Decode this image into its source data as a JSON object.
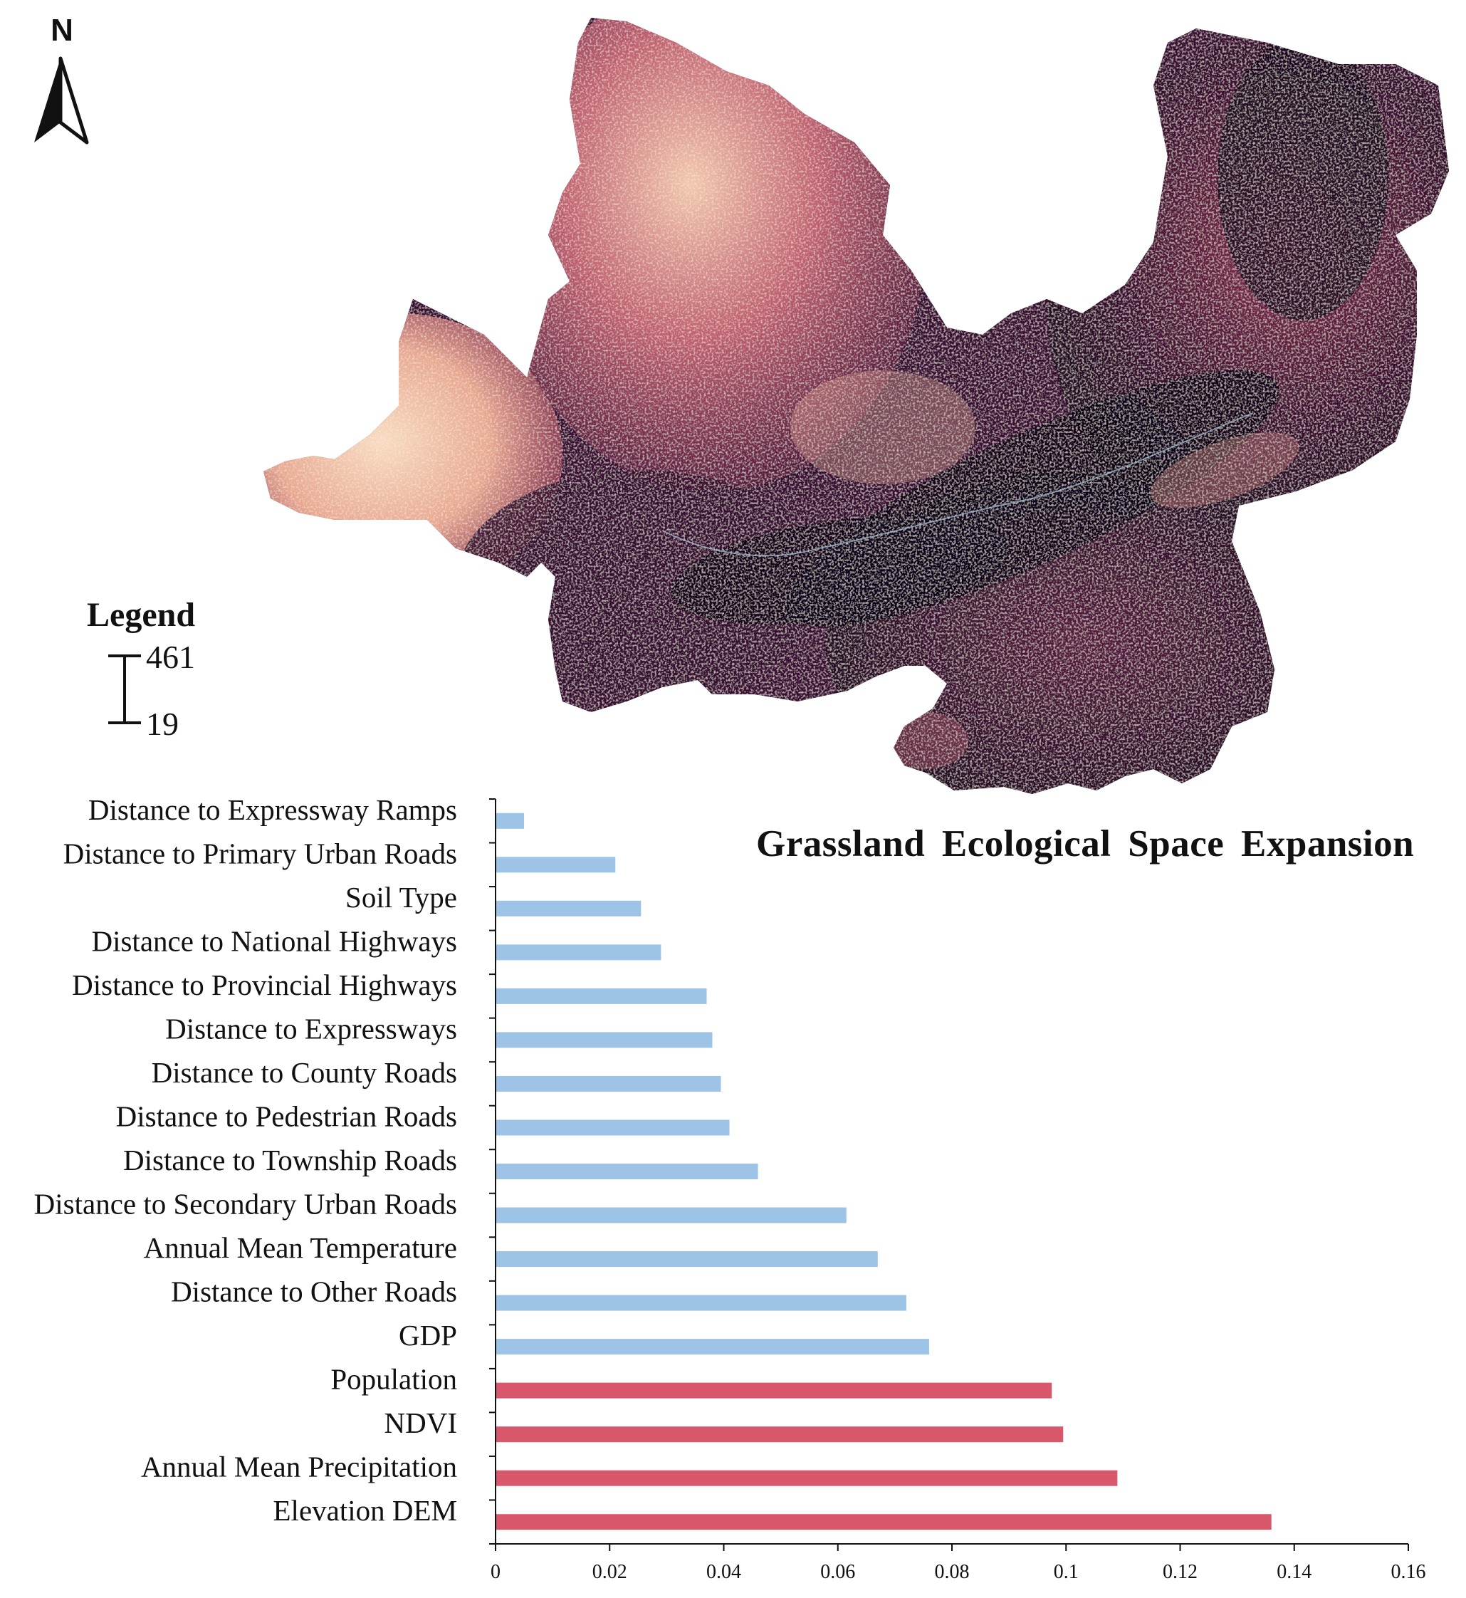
{
  "map": {
    "north_label": "N",
    "legend_title": "Legend",
    "legend_max": "461",
    "legend_min": "19",
    "color_low": "#12041c",
    "color_mid": "#7a2448",
    "color_high": "#f8dcc0"
  },
  "chart_data": {
    "type": "bar",
    "orientation": "horizontal",
    "title": "Grassland Ecological Space Expansion",
    "xlabel": "",
    "ylabel": "",
    "xlim": [
      0,
      0.16
    ],
    "xticks": [
      0,
      0.02,
      0.04,
      0.06,
      0.08,
      0.1,
      0.12,
      0.14,
      0.16
    ],
    "xtick_labels": [
      "0",
      "0.02",
      "0.04",
      "0.06",
      "0.08",
      "0.1",
      "0.12",
      "0.14",
      "0.16"
    ],
    "categories": [
      "Distance to Expressway Ramps",
      "Distance to Primary Urban Roads",
      "Soil Type",
      "Distance to National Highways",
      "Distance to Provincial Highways",
      "Distance to Expressways",
      "Distance to County Roads",
      "Distance to Pedestrian Roads",
      "Distance to Township Roads",
      "Distance to Secondary Urban Roads",
      "Annual Mean Temperature",
      "Distance to Other Roads",
      "GDP",
      "Population",
      "NDVI",
      "Annual Mean Precipitation",
      "Elevation DEM"
    ],
    "values": [
      0.005,
      0.021,
      0.0255,
      0.029,
      0.037,
      0.038,
      0.0395,
      0.041,
      0.046,
      0.0615,
      0.067,
      0.072,
      0.076,
      0.0975,
      0.0995,
      0.109,
      0.136
    ],
    "highlight": [
      false,
      false,
      false,
      false,
      false,
      false,
      false,
      false,
      false,
      false,
      false,
      false,
      false,
      true,
      true,
      true,
      true
    ],
    "colors": {
      "normal": "#9dc3e6",
      "highlight": "#d9576b"
    }
  }
}
